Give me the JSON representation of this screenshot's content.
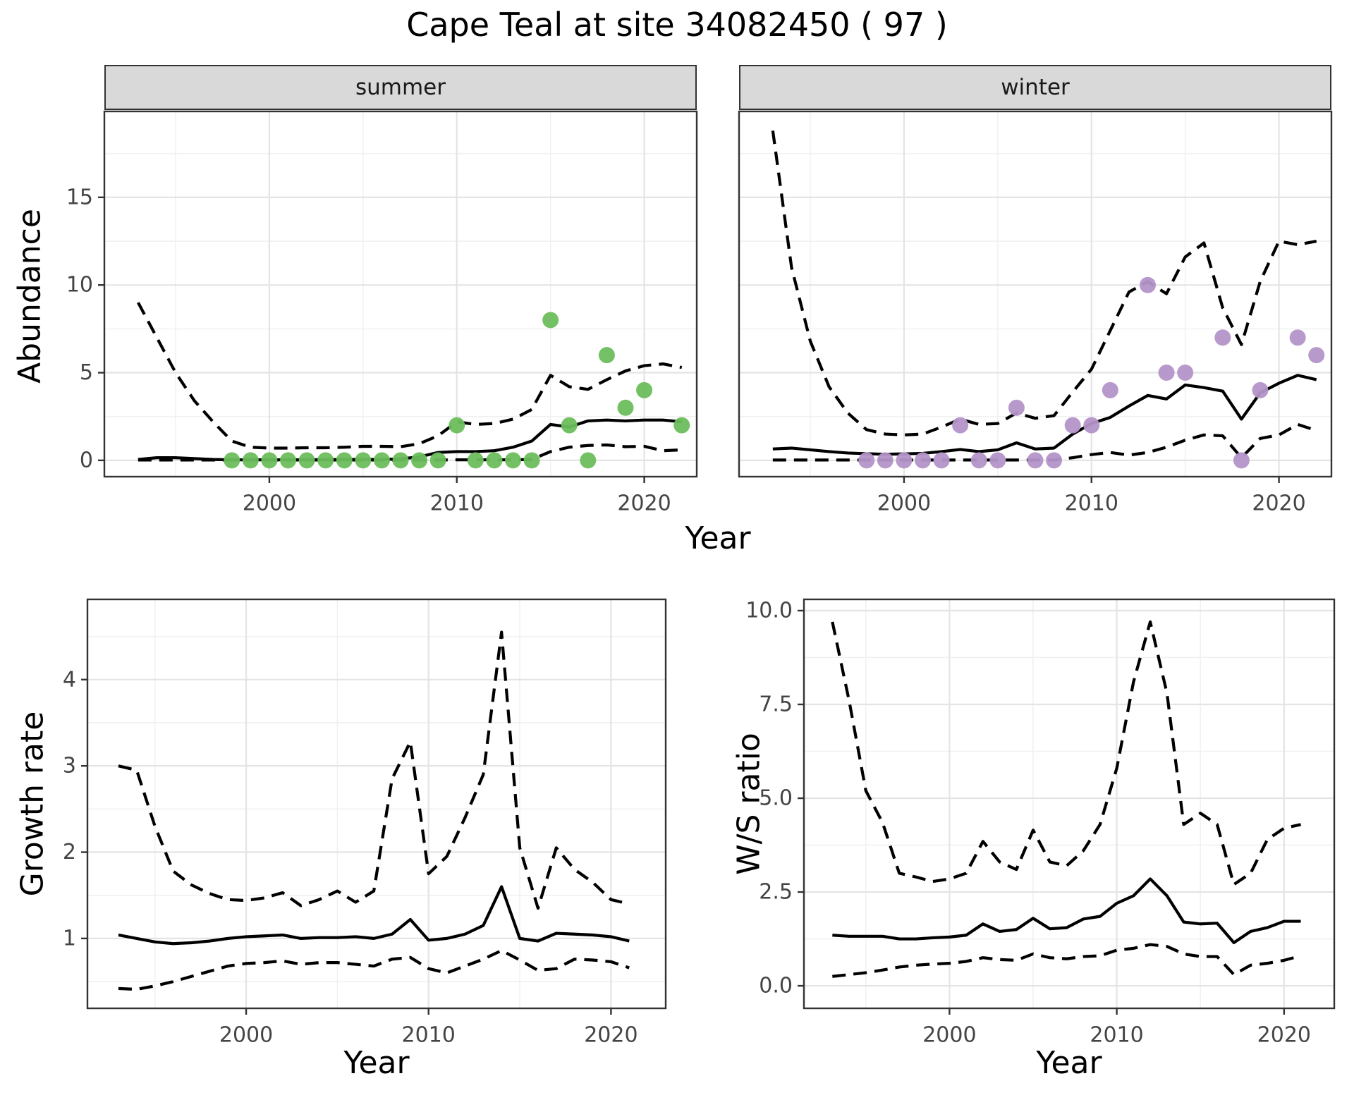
{
  "title": "Cape Teal at site 34082450 ( 97 )",
  "labels": {
    "abundance": "Abundance",
    "year": "Year",
    "growth": "Growth rate",
    "ws": "W/S ratio"
  },
  "colors": {
    "summer_points": "#6CBE5C",
    "winter_points": "#B493C8",
    "line": "#000000",
    "strip_background": "#D9D9D9",
    "panel_border": "#333333",
    "gridline": "#E4E4E4"
  },
  "chart_data": [
    {
      "type": "line",
      "name": "abundance-summer",
      "facet_label": "summer",
      "xlabel": "Year",
      "ylabel": "Abundance",
      "xlim": [
        1991.2,
        2022.8
      ],
      "ylim": [
        -0.93,
        19.9
      ],
      "xticks": {
        "values": [
          2000,
          2010,
          2020
        ],
        "labels": [
          "2000",
          "2010",
          "2020"
        ]
      },
      "yticks": {
        "values": [
          0,
          5,
          10,
          15
        ],
        "labels": [
          "0",
          "5",
          "10",
          "15"
        ]
      },
      "xminor": [
        1995,
        2005,
        2015
      ],
      "yminor": [
        2.5,
        7.5,
        12.5,
        17.5
      ],
      "x": [
        1993,
        1994,
        1995,
        1996,
        1997,
        1998,
        1999,
        2000,
        2001,
        2002,
        2003,
        2004,
        2005,
        2006,
        2007,
        2008,
        2009,
        2010,
        2011,
        2012,
        2013,
        2014,
        2015,
        2016,
        2017,
        2018,
        2019,
        2020,
        2021,
        2022
      ],
      "series": [
        {
          "name": "median",
          "style": "solid",
          "values": [
            0.05,
            0.15,
            0.15,
            0.1,
            0.05,
            0.03,
            0.03,
            0.03,
            0.03,
            0.03,
            0.04,
            0.05,
            0.05,
            0.05,
            0.08,
            0.2,
            0.45,
            0.5,
            0.5,
            0.55,
            0.75,
            1.1,
            2.05,
            1.9,
            2.25,
            2.3,
            2.25,
            2.3,
            2.3,
            2.2
          ]
        },
        {
          "name": "upper-ci",
          "style": "dashed",
          "values": [
            9.0,
            7.0,
            5.0,
            3.4,
            2.2,
            1.1,
            0.75,
            0.7,
            0.7,
            0.72,
            0.72,
            0.75,
            0.8,
            0.8,
            0.78,
            0.95,
            1.4,
            2.2,
            2.05,
            2.1,
            2.35,
            2.9,
            4.85,
            4.2,
            4.05,
            4.6,
            5.1,
            5.4,
            5.5,
            5.3
          ]
        },
        {
          "name": "lower-ci",
          "style": "dashed",
          "values": [
            0.02,
            0.02,
            0.02,
            0.02,
            0.02,
            0.02,
            0.02,
            0.02,
            0.02,
            0.02,
            0.02,
            0.02,
            0.02,
            0.02,
            0.02,
            0.02,
            0.02,
            0.03,
            0.03,
            0.03,
            0.03,
            0.05,
            0.5,
            0.75,
            0.85,
            0.88,
            0.78,
            0.8,
            0.55,
            0.6
          ]
        }
      ],
      "points": {
        "color": "#6CBE5C",
        "data": [
          [
            1998,
            0
          ],
          [
            1999,
            0
          ],
          [
            2000,
            0
          ],
          [
            2001,
            0
          ],
          [
            2002,
            0
          ],
          [
            2003,
            0
          ],
          [
            2004,
            0
          ],
          [
            2005,
            0
          ],
          [
            2006,
            0
          ],
          [
            2007,
            0
          ],
          [
            2008,
            0
          ],
          [
            2009,
            0
          ],
          [
            2010,
            2
          ],
          [
            2011,
            0
          ],
          [
            2012,
            0
          ],
          [
            2013,
            0
          ],
          [
            2014,
            0
          ],
          [
            2015,
            8
          ],
          [
            2016,
            2
          ],
          [
            2017,
            0
          ],
          [
            2018,
            6
          ],
          [
            2019,
            3
          ],
          [
            2020,
            4
          ],
          [
            2022,
            2
          ]
        ]
      }
    },
    {
      "type": "line",
      "name": "abundance-winter",
      "facet_label": "winter",
      "xlabel": "Year",
      "ylabel": "",
      "xlim": [
        1991.2,
        2022.8
      ],
      "ylim": [
        -0.93,
        19.9
      ],
      "xticks": {
        "values": [
          2000,
          2010,
          2020
        ],
        "labels": [
          "2000",
          "2010",
          "2020"
        ]
      },
      "yticks": {
        "values": [
          0,
          5,
          10,
          15
        ],
        "labels": []
      },
      "xminor": [
        1995,
        2005,
        2015
      ],
      "yminor": [
        2.5,
        7.5,
        12.5,
        17.5
      ],
      "x": [
        1993,
        1994,
        1995,
        1996,
        1997,
        1998,
        1999,
        2000,
        2001,
        2002,
        2003,
        2004,
        2005,
        2006,
        2007,
        2008,
        2009,
        2010,
        2011,
        2012,
        2013,
        2014,
        2015,
        2016,
        2017,
        2018,
        2019,
        2020,
        2021,
        2022
      ],
      "series": [
        {
          "name": "median",
          "style": "solid",
          "values": [
            0.65,
            0.7,
            0.6,
            0.5,
            0.42,
            0.38,
            0.35,
            0.37,
            0.4,
            0.5,
            0.62,
            0.5,
            0.6,
            1.0,
            0.65,
            0.7,
            1.5,
            2.1,
            2.45,
            3.1,
            3.7,
            3.5,
            4.3,
            4.15,
            3.95,
            2.35,
            3.85,
            4.4,
            4.85,
            4.6
          ]
        },
        {
          "name": "upper-ci",
          "style": "dashed",
          "values": [
            18.8,
            11.0,
            6.8,
            4.2,
            2.7,
            1.75,
            1.5,
            1.45,
            1.5,
            1.9,
            2.35,
            2.05,
            2.1,
            2.7,
            2.4,
            2.55,
            3.9,
            5.2,
            7.4,
            9.6,
            10.2,
            9.5,
            11.6,
            12.4,
            8.7,
            6.6,
            10.2,
            12.5,
            12.3,
            12.5
          ]
        },
        {
          "name": "lower-ci",
          "style": "dashed",
          "values": [
            0.02,
            0.02,
            0.02,
            0.02,
            0.02,
            0.02,
            0.02,
            0.02,
            0.02,
            0.02,
            0.02,
            0.02,
            0.02,
            0.02,
            0.02,
            0.02,
            0.15,
            0.33,
            0.45,
            0.3,
            0.45,
            0.75,
            1.15,
            1.45,
            1.4,
            0.15,
            1.25,
            1.45,
            2.05,
            1.7
          ]
        }
      ],
      "points": {
        "color": "#B493C8",
        "data": [
          [
            1998,
            0
          ],
          [
            1999,
            0
          ],
          [
            2000,
            0
          ],
          [
            2001,
            0
          ],
          [
            2002,
            0
          ],
          [
            2003,
            2
          ],
          [
            2004,
            0
          ],
          [
            2005,
            0
          ],
          [
            2006,
            3
          ],
          [
            2007,
            0
          ],
          [
            2008,
            0
          ],
          [
            2009,
            2
          ],
          [
            2010,
            2
          ],
          [
            2011,
            4
          ],
          [
            2013,
            10
          ],
          [
            2014,
            5
          ],
          [
            2015,
            5
          ],
          [
            2017,
            7
          ],
          [
            2018,
            0
          ],
          [
            2019,
            4
          ],
          [
            2021,
            7
          ],
          [
            2022,
            6
          ]
        ]
      }
    },
    {
      "type": "line",
      "name": "growth-rate",
      "facet_label": "",
      "xlabel": "Year",
      "ylabel": "Growth rate",
      "xlim": [
        1991.3,
        2023.0
      ],
      "ylim": [
        0.19,
        4.93
      ],
      "xticks": {
        "values": [
          2000,
          2010,
          2020
        ],
        "labels": [
          "2000",
          "2010",
          "2020"
        ]
      },
      "yticks": {
        "values": [
          1,
          2,
          3,
          4
        ],
        "labels": [
          "1",
          "2",
          "3",
          "4"
        ]
      },
      "xminor": [
        1995,
        2005,
        2015
      ],
      "yminor": [
        0.5,
        1.5,
        2.5,
        3.5,
        4.5
      ],
      "x": [
        1993,
        1994,
        1995,
        1996,
        1997,
        1998,
        1999,
        2000,
        2001,
        2002,
        2003,
        2004,
        2005,
        2006,
        2007,
        2008,
        2009,
        2010,
        2011,
        2012,
        2013,
        2014,
        2015,
        2016,
        2017,
        2018,
        2019,
        2020,
        2021
      ],
      "series": [
        {
          "name": "median",
          "style": "solid",
          "values": [
            1.04,
            1.0,
            0.96,
            0.94,
            0.95,
            0.97,
            1.0,
            1.02,
            1.03,
            1.04,
            1.0,
            1.01,
            1.01,
            1.02,
            1.0,
            1.05,
            1.22,
            0.98,
            1.0,
            1.05,
            1.15,
            1.6,
            1.0,
            0.97,
            1.06,
            1.05,
            1.04,
            1.02,
            0.97
          ]
        },
        {
          "name": "upper-ci",
          "style": "dashed",
          "values": [
            3.0,
            2.95,
            2.3,
            1.78,
            1.62,
            1.52,
            1.45,
            1.44,
            1.47,
            1.53,
            1.38,
            1.45,
            1.55,
            1.42,
            1.55,
            2.85,
            3.28,
            1.75,
            1.95,
            2.4,
            2.9,
            4.55,
            2.05,
            1.35,
            2.05,
            1.8,
            1.65,
            1.45,
            1.4
          ]
        },
        {
          "name": "lower-ci",
          "style": "dashed",
          "values": [
            0.42,
            0.41,
            0.45,
            0.5,
            0.56,
            0.62,
            0.68,
            0.71,
            0.72,
            0.74,
            0.7,
            0.72,
            0.72,
            0.7,
            0.68,
            0.76,
            0.78,
            0.65,
            0.6,
            0.68,
            0.76,
            0.86,
            0.75,
            0.63,
            0.65,
            0.76,
            0.75,
            0.73,
            0.66
          ]
        }
      ]
    },
    {
      "type": "line",
      "name": "ws-ratio",
      "facet_label": "",
      "xlabel": "Year",
      "ylabel": "W/S ratio",
      "xlim": [
        1991.3,
        2023.0
      ],
      "ylim": [
        -0.6,
        10.3
      ],
      "xticks": {
        "values": [
          2000,
          2010,
          2020
        ],
        "labels": [
          "2000",
          "2010",
          "2020"
        ]
      },
      "yticks": {
        "values": [
          0,
          2.5,
          5,
          7.5,
          10
        ],
        "labels": [
          "0.0",
          "2.5",
          "5.0",
          "7.5",
          "10.0"
        ]
      },
      "xminor": [
        1995,
        2005,
        2015
      ],
      "yminor": [
        1.25,
        3.75,
        6.25,
        8.75
      ],
      "x": [
        1993,
        1994,
        1995,
        1996,
        1997,
        1998,
        1999,
        2000,
        2001,
        2002,
        2003,
        2004,
        2005,
        2006,
        2007,
        2008,
        2009,
        2010,
        2011,
        2012,
        2013,
        2014,
        2015,
        2016,
        2017,
        2018,
        2019,
        2020,
        2021
      ],
      "series": [
        {
          "name": "median",
          "style": "solid",
          "values": [
            1.35,
            1.32,
            1.32,
            1.32,
            1.25,
            1.25,
            1.28,
            1.3,
            1.35,
            1.65,
            1.45,
            1.5,
            1.8,
            1.52,
            1.55,
            1.78,
            1.85,
            2.2,
            2.4,
            2.85,
            2.4,
            1.7,
            1.65,
            1.67,
            1.15,
            1.45,
            1.55,
            1.72,
            1.72
          ]
        },
        {
          "name": "upper-ci",
          "style": "dashed",
          "values": [
            9.7,
            7.6,
            5.2,
            4.35,
            3.0,
            2.9,
            2.78,
            2.85,
            3.0,
            3.85,
            3.3,
            3.1,
            4.15,
            3.3,
            3.2,
            3.6,
            4.3,
            5.8,
            8.1,
            9.7,
            7.8,
            4.3,
            4.6,
            4.3,
            2.7,
            3.0,
            3.9,
            4.2,
            4.3
          ]
        },
        {
          "name": "lower-ci",
          "style": "dashed",
          "values": [
            0.25,
            0.3,
            0.35,
            0.42,
            0.5,
            0.55,
            0.58,
            0.6,
            0.65,
            0.75,
            0.7,
            0.68,
            0.85,
            0.75,
            0.72,
            0.78,
            0.8,
            0.95,
            1.0,
            1.1,
            1.05,
            0.85,
            0.78,
            0.78,
            0.3,
            0.55,
            0.6,
            0.68,
            0.8
          ]
        }
      ]
    }
  ]
}
